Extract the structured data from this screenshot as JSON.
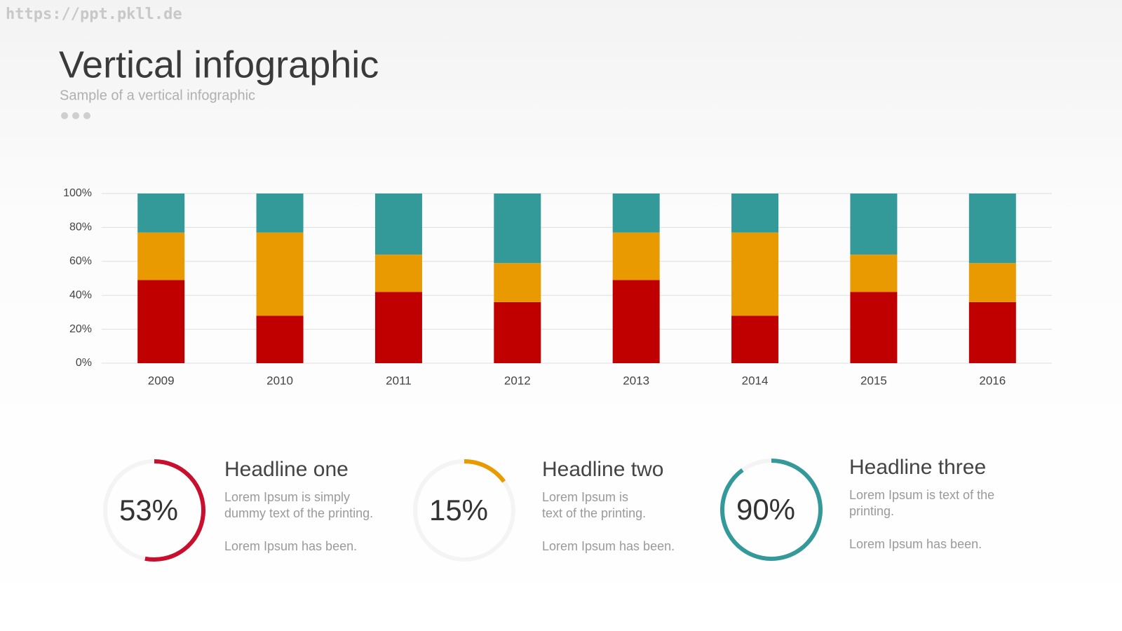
{
  "watermark": "https://ppt.pkll.de",
  "header": {
    "title": "Vertical infographic",
    "subtitle": "Sample of a vertical infographic"
  },
  "chart_data": [
    {
      "type": "stacked_bar",
      "categories": [
        "2009",
        "2010",
        "2011",
        "2012",
        "2013",
        "2014",
        "2015",
        "2016"
      ],
      "series": [
        {
          "color": "#c00000",
          "values": [
            49,
            28,
            42,
            36,
            49,
            28,
            42,
            36
          ]
        },
        {
          "color": "#e89a00",
          "values": [
            28,
            49,
            22,
            23,
            28,
            49,
            22,
            23
          ]
        },
        {
          "color": "#339999",
          "values": [
            23,
            23,
            36,
            41,
            23,
            23,
            36,
            41
          ]
        }
      ],
      "ylim": [
        0,
        100
      ],
      "yticks": [
        {
          "value": 0,
          "label": "0%"
        },
        {
          "value": 20,
          "label": "20%"
        },
        {
          "value": 40,
          "label": "40%"
        },
        {
          "value": 60,
          "label": "60%"
        },
        {
          "value": 80,
          "label": "80%"
        },
        {
          "value": 100,
          "label": "100%"
        }
      ],
      "grid": true
    },
    {
      "type": "ring",
      "values": [
        53,
        15,
        90
      ],
      "value_labels": [
        "53%",
        "15%",
        "90%"
      ],
      "colors": [
        "#c8102e",
        "#e89a00",
        "#339999"
      ]
    }
  ],
  "cards": [
    {
      "headline": "Headline one",
      "lines": [
        "Lorem Ipsum is simply",
        "dummy text of the printing.",
        "Lorem Ipsum has been."
      ]
    },
    {
      "headline": "Headline two",
      "lines": [
        "Lorem Ipsum is",
        "text of the printing.",
        "Lorem Ipsum has been."
      ]
    },
    {
      "headline": "Headline three",
      "lines": [
        "Lorem Ipsum is text of the",
        "printing.",
        "Lorem Ipsum has been."
      ]
    }
  ]
}
